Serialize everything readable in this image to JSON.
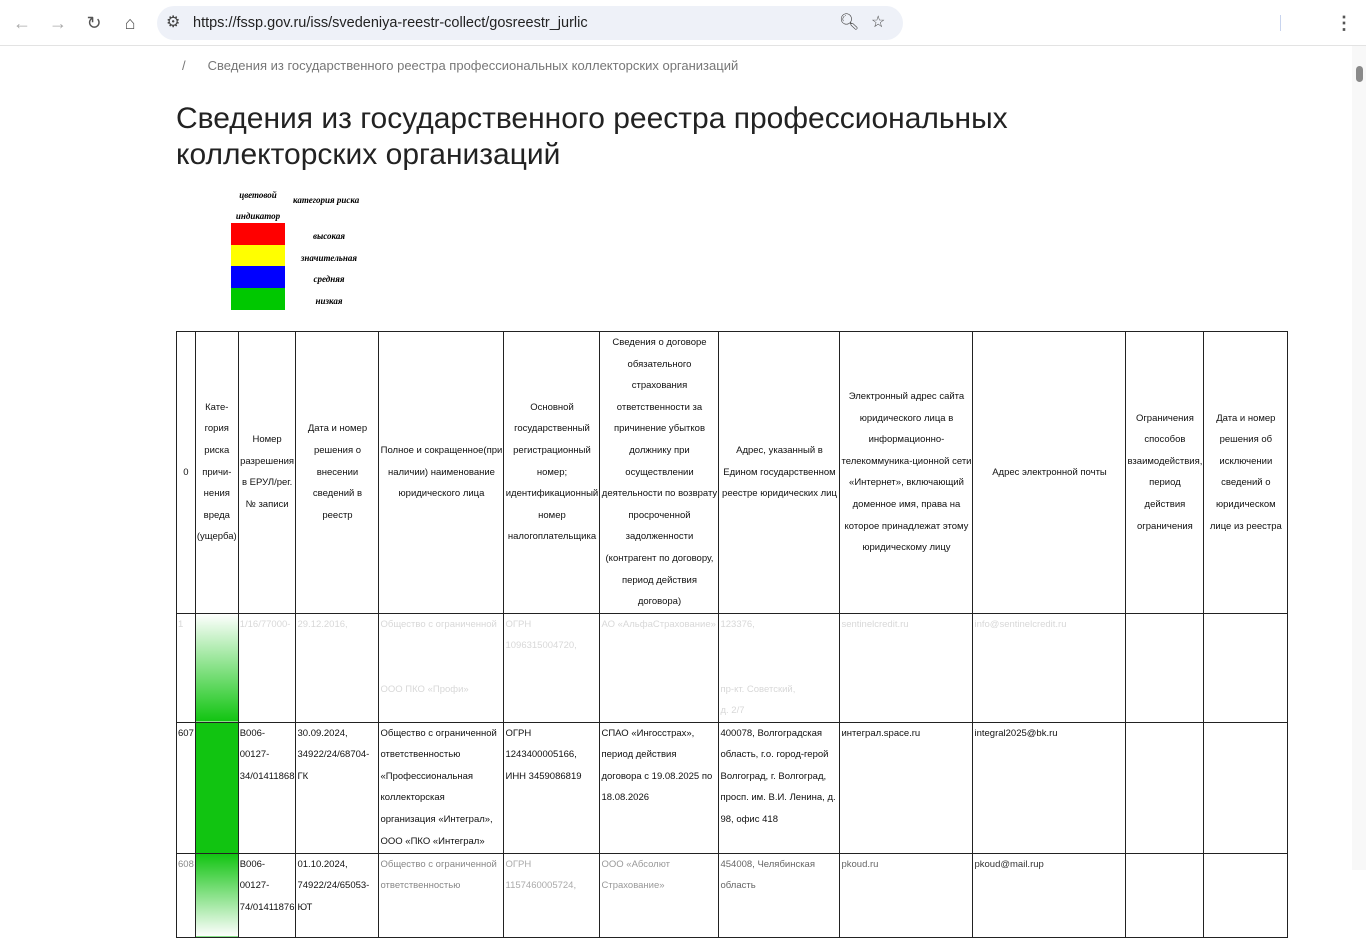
{
  "browser": {
    "url": "https://fssp.gov.ru/iss/svedeniya-reestr-collect/gosreestr_jurlic"
  },
  "breadcrumb": {
    "separator": "/",
    "current": "Сведения из государственного реестра профессиональных коллекторских организаций"
  },
  "page_title": "Сведения из государственного реестра профессиональных коллекторских организаций",
  "legend": {
    "col1": "цветовой индикатор",
    "col2": "категория риска",
    "items": [
      {
        "label": "высокая",
        "color": "#ff0000"
      },
      {
        "label": "значительная",
        "color": "#ffff00"
      },
      {
        "label": "средняя",
        "color": "#0000ff"
      },
      {
        "label": "низкая",
        "color": "#00c800"
      }
    ]
  },
  "table": {
    "headers": [
      "0",
      "Кате-гория риска причи-нения вреда (ущерба)",
      "Номер разрешения в ЕРУЛ/рег. № записи",
      "Дата и номер решения о внесении сведений в реестр",
      "Полное и сокращенное(при наличии) наименование юридического лица",
      "Основной государственный регистрационный номер; идентификационный номер налогоплательщика",
      "Сведения о договоре обязательного страхования ответственности за причинение убытков должнику при осуществлении деятельности по возврату просроченной задолженности (контрагент по договору, период действия договора)",
      "Адрес, указанный в Едином государственном реестре юридических лиц",
      "Электронный адрес сайта юридического лица в информационно-телекоммуника-ционной сети «Интернет», включающий доменное имя, права на которое принадлежат этому юридическому лицу",
      "Адрес электронной почты",
      "Ограничения способов взаимодействия, период действия ограничения",
      "Дата и номер решения об исключении сведений о юридическом лице из реестра"
    ],
    "rows": [
      [
        "1",
        "",
        "1/16/77000-",
        "29.12.2016,",
        "Общество с ограниченной\n\n\nООО ПКО «Профи»",
        "ОГРН 1096315004720,",
        "АО «АльфаСтрахование»",
        "123376,\n\n\nпр-кт. Советский,\nд. 2/7",
        "sentinelcredit.ru",
        "info@sentinelcredit.ru",
        "",
        ""
      ],
      [
        "607",
        "",
        "В006-00127-34/01411868",
        "30.09.2024, 34922/24/68704-ГК",
        "Общество с ограниченной ответственностью «Профессиональная коллекторская организация «Интеграл», ООО «ПКО «Интеграл»",
        "ОГРН 1243400005166, ИНН 3459086819",
        "СПАО «Ингосстрах», период действия договора с 19.08.2025 по 18.08.2026",
        "400078, Волгоградская область, г.о. город-герой Волгоград, г. Волгоград, просп. им. В.И. Ленина, д. 98, офис 418",
        "интеграл.space.ru",
        "integral2025@bk.ru",
        "",
        ""
      ],
      [
        "608",
        "",
        "В006-00127-74/01411876",
        "01.10.2024, 74922/24/65053-ЮТ",
        "Общество с ограниченной ответственностью",
        "ОГРН 1157460005724,",
        "ООО «Абсолют Страхование»",
        "454008, Челябинская область",
        "pkoud.ru",
        "pkoud@mail.rup",
        "",
        ""
      ]
    ]
  }
}
